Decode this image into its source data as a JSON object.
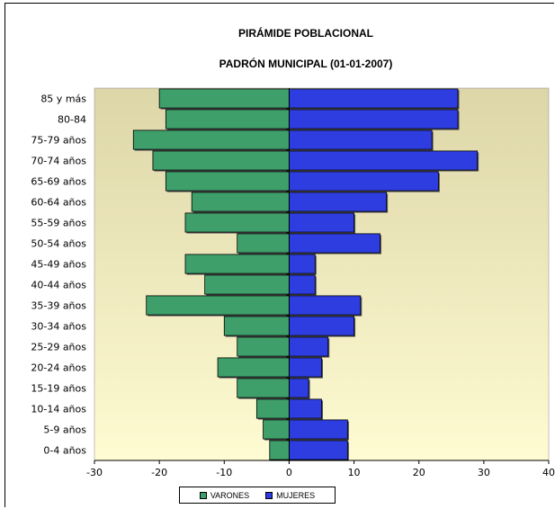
{
  "chart_data": {
    "type": "bar",
    "orientation": "horizontal",
    "title": "PIRÁMIDE POBLACIONAL",
    "subtitle": "PADRÓN MUNICIPAL (01-01-2007)",
    "categories": [
      "85 y más",
      "80-84",
      "75-79 años",
      "70-74 años",
      "65-69 años",
      "60-64 años",
      "55-59 años",
      "50-54 años",
      "45-49 años",
      "40-44 años",
      "35-39 años",
      "30-34 años",
      "25-29 años",
      "20-24 años",
      "15-19 años",
      "10-14 años",
      "5-9 años",
      "0-4 años"
    ],
    "series": [
      {
        "name": "VARONES",
        "color": "#3f9f6b",
        "values": [
          -20,
          -19,
          -24,
          -21,
          -19,
          -15,
          -16,
          -8,
          -16,
          -13,
          -22,
          -10,
          -8,
          -11,
          -8,
          -5,
          -4,
          -3
        ]
      },
      {
        "name": "MUJERES",
        "color": "#2e3de0",
        "values": [
          26,
          26,
          22,
          29,
          23,
          15,
          10,
          14,
          4,
          4,
          11,
          10,
          6,
          5,
          3,
          5,
          9,
          9
        ]
      }
    ],
    "xlim": [
      -30,
      40
    ],
    "xticks": [
      -30,
      -20,
      -10,
      0,
      10,
      20,
      30,
      40
    ],
    "legend_position": "bottom",
    "grid": false,
    "plot_background": "gradient-tan-to-pale-yellow"
  }
}
